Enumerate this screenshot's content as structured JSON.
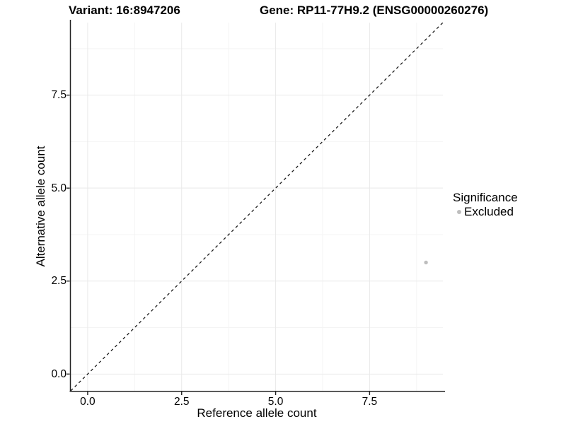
{
  "chart_data": {
    "type": "scatter",
    "titles": {
      "left": "Variant: 16:8947206",
      "right": "Gene: RP11-77H9.2 (ENSG00000260276)"
    },
    "x_axis": {
      "label": "Reference allele count",
      "range": [
        -0.45,
        9.45
      ],
      "tick_values": [
        0,
        2.5,
        5,
        7.5
      ],
      "tick_labels": [
        "0.0",
        "2.5",
        "5.0",
        "7.5"
      ],
      "minor_tick_values": [
        1.25,
        3.75,
        6.25,
        8.75
      ]
    },
    "y_axis": {
      "label": "Alternative allele count",
      "range": [
        -0.45,
        9.45
      ],
      "tick_values": [
        0,
        2.5,
        5,
        7.5
      ],
      "tick_labels": [
        "0.0",
        "2.5",
        "5.0",
        "7.5"
      ],
      "minor_tick_values": [
        1.25,
        3.75,
        6.25,
        8.75
      ]
    },
    "grid": {
      "on": true,
      "major_color": "#e9e9e9",
      "minor_color": "#f4f4f4"
    },
    "axis_color": "#222222",
    "reference_line": {
      "type": "identity",
      "slope": 1,
      "intercept": 0,
      "style": "dashed",
      "color": "#1c1c1c"
    },
    "series": [
      {
        "name": "Excluded",
        "color": "#bebebe",
        "marker": "circle",
        "points": [
          {
            "x": 9,
            "y": 3
          }
        ]
      }
    ],
    "legend": {
      "title": "Significance",
      "position": "right",
      "items": [
        {
          "label": "Excluded",
          "color": "#bebebe",
          "marker": "circle"
        }
      ]
    }
  }
}
